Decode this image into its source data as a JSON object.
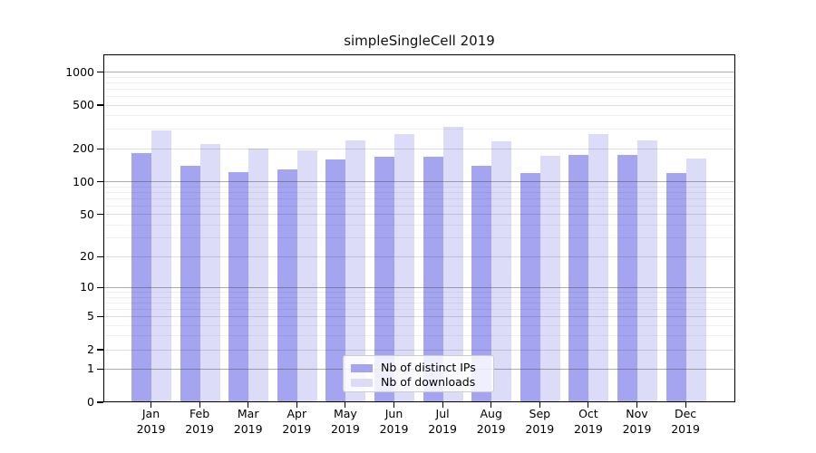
{
  "title": "simpleSingleCell 2019",
  "legend": {
    "items": [
      {
        "label": "Nb of distinct IPs",
        "color": "#a4a4f1"
      },
      {
        "label": "Nb of downloads",
        "color": "#dcdcf9"
      }
    ]
  },
  "chart_data": {
    "type": "bar",
    "title": "simpleSingleCell 2019",
    "categories": [
      "Jan",
      "Feb",
      "Mar",
      "Apr",
      "May",
      "Jun",
      "Jul",
      "Aug",
      "Sep",
      "Oct",
      "Nov",
      "Dec"
    ],
    "category_year": "2019",
    "series": [
      {
        "name": "Nb of distinct IPs",
        "color": "#a4a4f1",
        "values": [
          181,
          139,
          122,
          130,
          159,
          170,
          169,
          139,
          120,
          176,
          176,
          120
        ]
      },
      {
        "name": "Nb of downloads",
        "color": "#dcdcf9",
        "values": [
          295,
          221,
          200,
          192,
          240,
          272,
          315,
          232,
          172,
          272,
          240,
          163
        ]
      }
    ],
    "xlabel": "",
    "ylabel": "",
    "yscale": "log1p",
    "yticks": [
      0,
      1,
      2,
      5,
      10,
      20,
      50,
      100,
      200,
      500,
      1000
    ],
    "ylim": [
      0,
      1400
    ],
    "grid": "on",
    "legend_position": "lower center inside"
  }
}
